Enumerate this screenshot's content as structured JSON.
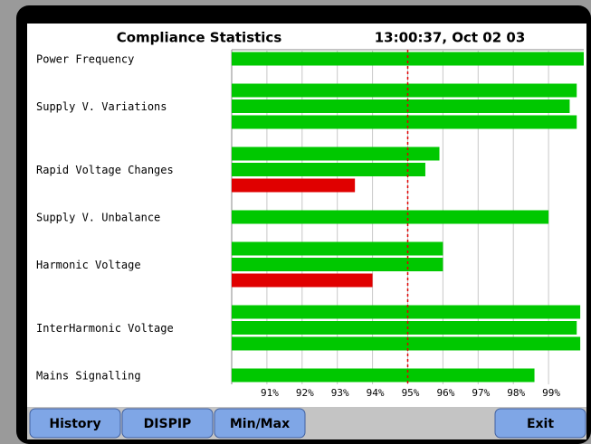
{
  "header": {
    "title": "Compliance Statistics",
    "datetime": "13:00:37, Oct 02 03"
  },
  "chart_data": {
    "type": "hbar-groups",
    "xlim": [
      90,
      100
    ],
    "xticks": [
      {
        "value": 91,
        "label": "91%"
      },
      {
        "value": 92,
        "label": "92%"
      },
      {
        "value": 93,
        "label": "93%"
      },
      {
        "value": 94,
        "label": "94%"
      },
      {
        "value": 95,
        "label": "95%"
      },
      {
        "value": 96,
        "label": "96%"
      },
      {
        "value": 97,
        "label": "97%"
      },
      {
        "value": 98,
        "label": "98%"
      },
      {
        "value": 99,
        "label": "99%"
      }
    ],
    "grid": true,
    "reference_line": 95,
    "groups": [
      {
        "name": "Power Frequency",
        "values": [
          100
        ],
        "colors": [
          "#00c800"
        ]
      },
      {
        "name": "Supply V. Variations",
        "values": [
          99.8,
          99.6,
          99.8
        ],
        "colors": [
          "#00c800",
          "#00c800",
          "#00c800"
        ]
      },
      {
        "name": "Rapid Voltage Changes",
        "values": [
          95.9,
          95.5,
          93.5
        ],
        "colors": [
          "#00c800",
          "#00c800",
          "#e00000"
        ]
      },
      {
        "name": "Supply V. Unbalance",
        "values": [
          99.0
        ],
        "colors": [
          "#00c800"
        ]
      },
      {
        "name": "Harmonic Voltage",
        "values": [
          96.0,
          96.0,
          94.0
        ],
        "colors": [
          "#00c800",
          "#00c800",
          "#e00000"
        ]
      },
      {
        "name": "InterHarmonic Voltage",
        "values": [
          99.9,
          99.8,
          99.9
        ],
        "colors": [
          "#00c800",
          "#00c800",
          "#00c800"
        ]
      },
      {
        "name": "Mains Signalling",
        "values": [
          98.6
        ],
        "colors": [
          "#00c800"
        ]
      }
    ]
  },
  "buttons": [
    "History",
    "DISPIP",
    "Min/Max",
    "Exit"
  ]
}
